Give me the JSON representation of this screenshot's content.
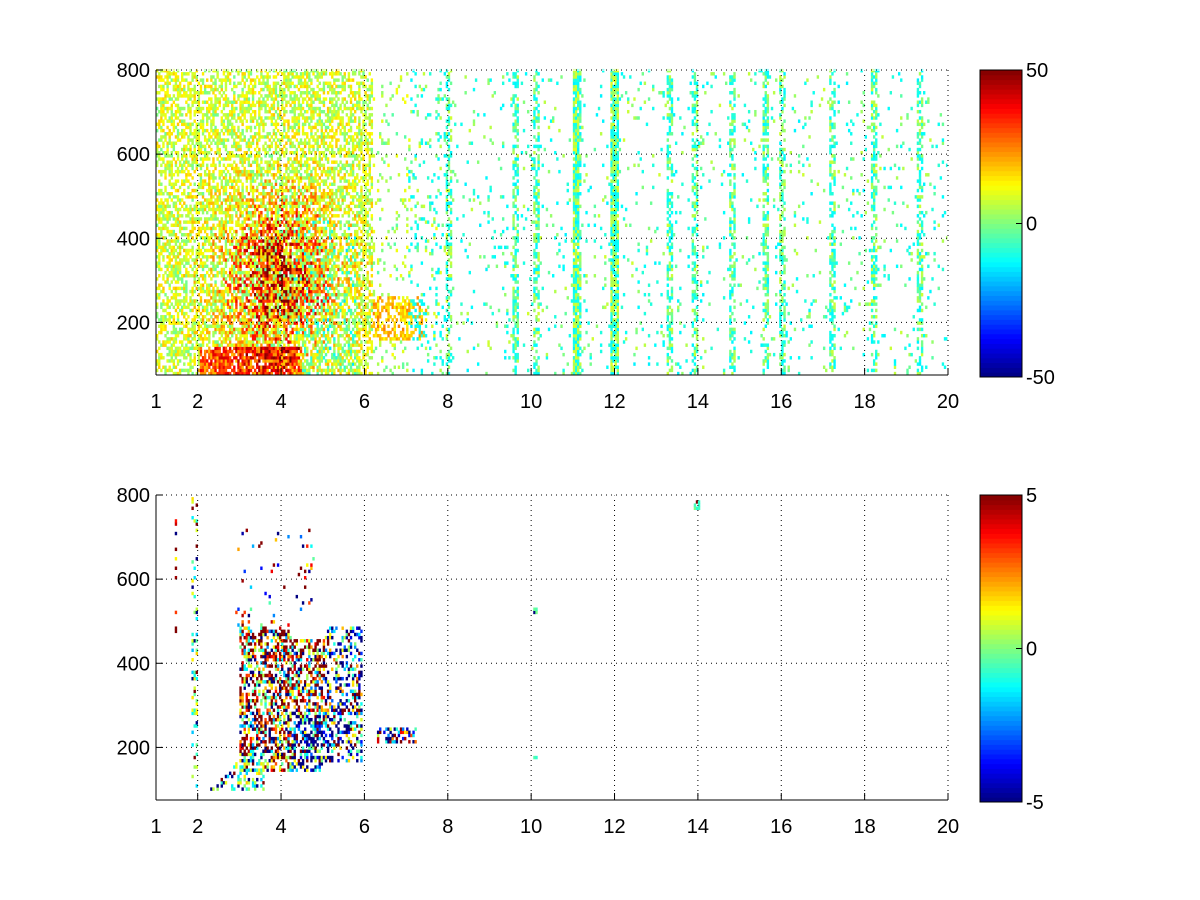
{
  "chart_data": [
    {
      "type": "heatmap",
      "title": "",
      "xlabel": "",
      "ylabel": "",
      "xlim": [
        1,
        20
      ],
      "ylim": [
        75,
        800
      ],
      "x_ticks": [
        1,
        2,
        4,
        6,
        8,
        10,
        12,
        14,
        16,
        18,
        20
      ],
      "y_ticks": [
        200,
        400,
        600,
        800
      ],
      "grid": true,
      "grid_style": "dotted",
      "colormap": "jet",
      "colorbar": {
        "min": -50,
        "max": 50,
        "ticks": [
          50,
          0,
          -50
        ],
        "placement": "right"
      },
      "missing_color": "#ffffff",
      "description_values": "sparse high-frequency field; strongest positive values (~20 to 40) concentrated near x 3-5, y 100-450; near-zero columns scattered to x 20; strong yellow-green column near x 12"
    },
    {
      "type": "heatmap",
      "title": "",
      "xlabel": "",
      "ylabel": "",
      "xlim": [
        1,
        20
      ],
      "ylim": [
        75,
        800
      ],
      "x_ticks": [
        1,
        2,
        4,
        6,
        8,
        10,
        12,
        14,
        16,
        18,
        20
      ],
      "y_ticks": [
        200,
        400,
        600,
        800
      ],
      "grid": true,
      "grid_style": "dotted",
      "colormap": "jet",
      "colorbar": {
        "min": -5,
        "max": 5,
        "ticks": [
          5,
          0,
          -5
        ],
        "placement": "right"
      },
      "missing_color": "#ffffff",
      "description_values": "values only in x 2-7, y 100-700; mixed red (+5) and blue (-5) clusters around x 3.5-5, y 150-450; a small cluster near x 6.5-7, y 220; isolated points near x 14, y 770"
    }
  ]
}
